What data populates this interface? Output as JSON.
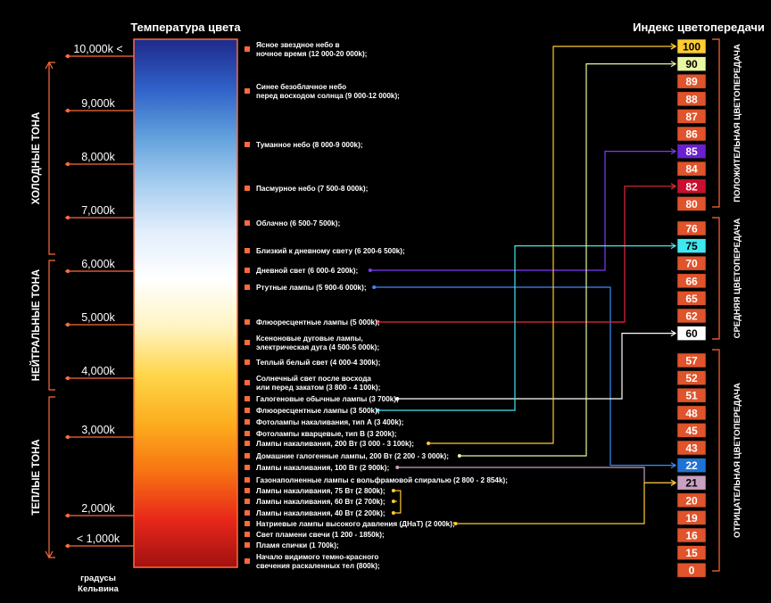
{
  "titles": {
    "left": "Температура цвета",
    "right": "Индекс цветопередачи",
    "unit_line1": "градусы",
    "unit_line2": "Кельвина"
  },
  "tone_groups": [
    {
      "label": "ХОЛОДНЫЕ ТОНА"
    },
    {
      "label": "НЕЙТРАЛЬНЫЕ ТОНА"
    },
    {
      "label": "ТЕПЛЫЕ ТОНА"
    }
  ],
  "kelvin_ticks": [
    "10,000k <",
    "9,000k",
    "8,000k",
    "7,000k",
    "6,000k",
    "5,000k",
    "4,000k",
    "3,000k",
    "2,000k",
    "< 1,000k"
  ],
  "spectrum_colors": [
    "#1f2a8a",
    "#2f5fc7",
    "#5f9fdc",
    "#a5cdef",
    "#e2eefb",
    "#ffffff",
    "#fff4c2",
    "#ffd54a",
    "#fcae1e",
    "#f77412",
    "#e8281a",
    "#a11111"
  ],
  "sources": [
    {
      "l1": "Ясное звездное небо в",
      "l2": "ночное время (12 000-20 000k);"
    },
    {
      "l1": "Синее безоблачное небо",
      "l2": "перед восходом солнца (9 000-12 000k);"
    },
    {
      "l1": "Туманное небо (8 000-9 000k);",
      "l2": ""
    },
    {
      "l1": "Пасмурное небо (7 500-8 000k);",
      "l2": ""
    },
    {
      "l1": "Облачно (6 500-7 500k);",
      "l2": ""
    },
    {
      "l1": "Близкий к дневному свету (6 200-6 500k);",
      "l2": ""
    },
    {
      "l1": "Дневной свет (6 000-6 200k);",
      "l2": ""
    },
    {
      "l1": "Ртутные лампы (5 900-6 000k);",
      "l2": ""
    },
    {
      "l1": "Флюоресцентные лампы (5 000k);",
      "l2": ""
    },
    {
      "l1": "Ксеноновые дуговые лампы,",
      "l2": "электрическая дуга (4 500-5 000k);"
    },
    {
      "l1": "Теплый белый свет  (4 000-4 300k);",
      "l2": ""
    },
    {
      "l1": "Солнечный свет после восхода",
      "l2": "или перед закатом (3 800 - 4 100k);"
    },
    {
      "l1": "Галогеновые обычные лампы (3 700k);",
      "l2": ""
    },
    {
      "l1": "Флюоресцентные лампы (3 500k);",
      "l2": ""
    },
    {
      "l1": "Фотолампы накаливания, тип А (3 400k);",
      "l2": ""
    },
    {
      "l1": "Фотолампы кварцевые, тип В (3 200k);",
      "l2": ""
    },
    {
      "l1": "Лампы накаливания, 200 Вт (3 000 - 3 100k);",
      "l2": ""
    },
    {
      "l1": "Домашние галогенные лампы, 200 Вт (2 200 - 3 000k);",
      "l2": ""
    },
    {
      "l1": "Лампы накаливания, 100 Вт (2 900k);",
      "l2": ""
    },
    {
      "l1": "Газонаполненные лампы с вольфрамовой спиралью (2 800 - 2 854k);",
      "l2": ""
    },
    {
      "l1": "Лампы накаливания, 75 Вт (2 800k);",
      "l2": ""
    },
    {
      "l1": "Лампы накаливания, 60 Вт (2 700k);",
      "l2": ""
    },
    {
      "l1": "Лампы накаливания, 40 Вт (2 200k);",
      "l2": ""
    },
    {
      "l1": "Натриевые лампы высокого давления (ДНаТ) (2 000k);",
      "l2": ""
    },
    {
      "l1": "Свет пламени свечи (1 200 - 1850k);",
      "l2": ""
    },
    {
      "l1": "Пламя спички (1 700k);",
      "l2": ""
    },
    {
      "l1": "Начало видимого темно-красного",
      "l2": "свечения раскаленных тел (800k);"
    }
  ],
  "cri_groups": [
    {
      "label": "ПОЛОЖИТЕЛЬНАЯ ЦВЕТОПЕРЕДАЧА",
      "boxes": [
        {
          "value": "100",
          "fill": "#ffcc33",
          "text": "#000000"
        },
        {
          "value": "90",
          "fill": "#e8f7a0",
          "text": "#000000"
        },
        {
          "value": "89",
          "fill": "#e0532b",
          "text": "#ffffff"
        },
        {
          "value": "88",
          "fill": "#e0532b",
          "text": "#ffffff"
        },
        {
          "value": "87",
          "fill": "#e0532b",
          "text": "#ffffff"
        },
        {
          "value": "86",
          "fill": "#e0532b",
          "text": "#ffffff"
        },
        {
          "value": "85",
          "fill": "#6a1fd1",
          "text": "#ffffff"
        },
        {
          "value": "84",
          "fill": "#e0532b",
          "text": "#ffffff"
        },
        {
          "value": "82",
          "fill": "#c8102e",
          "text": "#ffffff"
        },
        {
          "value": "80",
          "fill": "#e0532b",
          "text": "#ffffff"
        }
      ]
    },
    {
      "label": "СРЕДНЯЯ ЦВЕТОПЕРЕДАЧА",
      "boxes": [
        {
          "value": "76",
          "fill": "#e0532b",
          "text": "#ffffff"
        },
        {
          "value": "75",
          "fill": "#3fe8f0",
          "text": "#000000"
        },
        {
          "value": "70",
          "fill": "#e0532b",
          "text": "#ffffff"
        },
        {
          "value": "66",
          "fill": "#e0532b",
          "text": "#ffffff"
        },
        {
          "value": "65",
          "fill": "#e0532b",
          "text": "#ffffff"
        },
        {
          "value": "62",
          "fill": "#e0532b",
          "text": "#ffffff"
        },
        {
          "value": "60",
          "fill": "#ffffff",
          "text": "#000000"
        }
      ]
    },
    {
      "label": "ОТРИЦАТЕЛЬНАЯ ЦВЕТОПЕРЕДАЧА",
      "boxes": [
        {
          "value": "57",
          "fill": "#e0532b",
          "text": "#ffffff"
        },
        {
          "value": "52",
          "fill": "#e0532b",
          "text": "#ffffff"
        },
        {
          "value": "51",
          "fill": "#e0532b",
          "text": "#ffffff"
        },
        {
          "value": "48",
          "fill": "#e0532b",
          "text": "#ffffff"
        },
        {
          "value": "45",
          "fill": "#e0532b",
          "text": "#ffffff"
        },
        {
          "value": "43",
          "fill": "#e0532b",
          "text": "#ffffff"
        },
        {
          "value": "22",
          "fill": "#1e73d6",
          "text": "#ffffff"
        },
        {
          "value": "21",
          "fill": "#c9a0c0",
          "text": "#000000"
        },
        {
          "value": "20",
          "fill": "#e0532b",
          "text": "#ffffff"
        },
        {
          "value": "19",
          "fill": "#e0532b",
          "text": "#ffffff"
        },
        {
          "value": "16",
          "fill": "#e0532b",
          "text": "#ffffff"
        },
        {
          "value": "15",
          "fill": "#e0532b",
          "text": "#ffffff"
        },
        {
          "value": "0",
          "fill": "#e0532b",
          "text": "#ffffff"
        }
      ]
    }
  ],
  "links": [
    {
      "source": 6,
      "target": "85",
      "color": "#7b3cff"
    },
    {
      "source": 7,
      "target": "22",
      "color": "#3a8cff"
    },
    {
      "source": 8,
      "target": "82",
      "color": "#e8283a"
    },
    {
      "source": 12,
      "target": "60",
      "color": "#ffffff"
    },
    {
      "source": 13,
      "target": "75",
      "color": "#44e6f2"
    },
    {
      "source": 16,
      "target": "100",
      "color": "#ffc830"
    },
    {
      "source": 17,
      "target": "90",
      "color": "#e6f59a"
    },
    {
      "source": 18,
      "target": "21",
      "color": "#c9a0c0"
    },
    {
      "source": 20,
      "target": "100",
      "color": "#ffc830"
    },
    {
      "source": 21,
      "target": "100",
      "color": "#ffc830"
    },
    {
      "source": 22,
      "target": "100",
      "color": "#ffc830"
    },
    {
      "source": 23,
      "target": "21",
      "color": "#ffc830"
    }
  ]
}
